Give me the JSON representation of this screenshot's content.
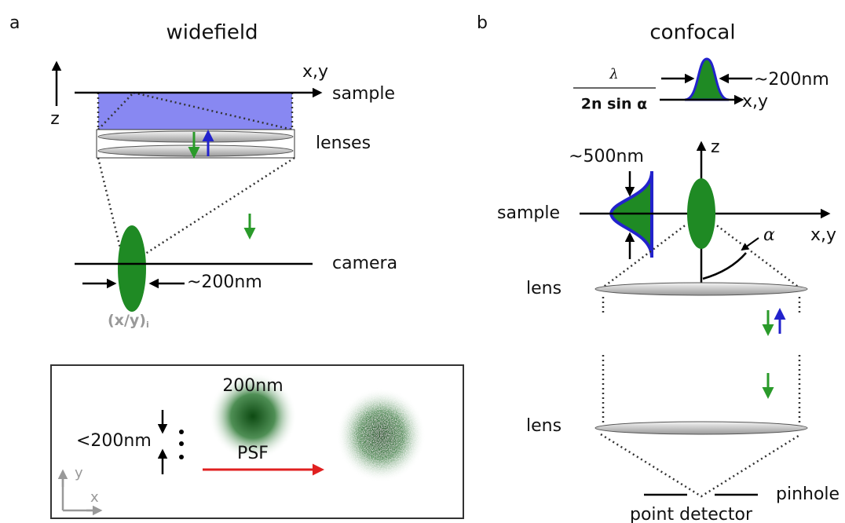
{
  "panel_a": {
    "letter": "a",
    "title": "widefield",
    "axis_z": "z",
    "axis_xy": "x,y",
    "sample": "sample",
    "lenses": "lenses",
    "camera": "camera",
    "width_label": "~200nm",
    "position_label": "(x/y)",
    "position_subscript": "i",
    "inset": {
      "separation": "<200nm",
      "psf_size": "200nm",
      "psf": "PSF",
      "axis_y": "y",
      "axis_x": "x"
    }
  },
  "panel_b": {
    "letter": "b",
    "title": "confocal",
    "formula_numerator": "λ",
    "formula_denominator": "2n sin α",
    "lateral_label": "~200nm",
    "lateral_axis": "x,y",
    "axial_label": "~500nm",
    "axis_z": "z",
    "sample": "sample",
    "axis_xy": "x,y",
    "angle": "α",
    "lens_top": "lens",
    "lens_bottom": "lens",
    "pinhole": "pinhole",
    "detector": "point detector"
  }
}
